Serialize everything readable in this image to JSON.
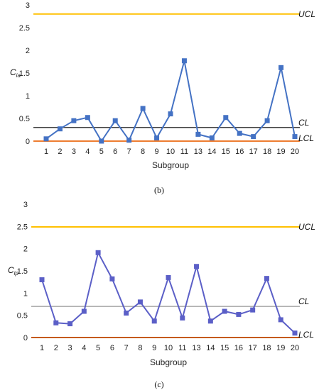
{
  "chart_data": [
    {
      "type": "line",
      "caption": "(b)",
      "xlabel": "Subgroup",
      "ylabel": "C",
      "ylabel_sub": "ia",
      "ylim": [
        0,
        3
      ],
      "yticks": [
        "0",
        "0.5",
        "1",
        "1.5",
        "2",
        "2.5",
        "3"
      ],
      "categories": [
        "1",
        "2",
        "3",
        "4",
        "5",
        "6",
        "7",
        "8",
        "9",
        "10",
        "11",
        "13",
        "14",
        "15",
        "16",
        "17",
        "18",
        "19",
        "20"
      ],
      "values": [
        0.05,
        0.27,
        0.45,
        0.52,
        0.0,
        0.45,
        0.02,
        0.72,
        0.07,
        0.6,
        1.77,
        0.15,
        0.07,
        0.52,
        0.17,
        0.1,
        0.45,
        1.62,
        0.1
      ],
      "series_color": "#4472C4",
      "limits": [
        {
          "label": "UCL",
          "value": 2.8,
          "color": "#FFC000"
        },
        {
          "label": "CL",
          "value": 0.3,
          "color": "#404040"
        },
        {
          "label": "LCL",
          "value": 0.0,
          "color": "#ED7D31"
        }
      ],
      "grid": false
    },
    {
      "type": "line",
      "caption": "(c)",
      "xlabel": "Subgroup",
      "ylabel": "C",
      "ylabel_sub": "ip",
      "ylim": [
        0,
        3
      ],
      "yticks": [
        "0",
        "0.5",
        "1",
        "1.5",
        "2",
        "2.5",
        "3"
      ],
      "categories": [
        "1",
        "2",
        "3",
        "4",
        "5",
        "6",
        "7",
        "8",
        "9",
        "10",
        "11",
        "13",
        "14",
        "15",
        "16",
        "17",
        "18",
        "19",
        "20"
      ],
      "values": [
        1.3,
        0.33,
        0.31,
        0.59,
        1.91,
        1.32,
        0.55,
        0.8,
        0.37,
        1.35,
        0.44,
        1.6,
        0.37,
        0.59,
        0.52,
        0.62,
        1.33,
        0.4,
        0.1
      ],
      "series_color": "#5B5FC7",
      "limits": [
        {
          "label": "UCL",
          "value": 2.49,
          "color": "#FFC000"
        },
        {
          "label": "CL",
          "value": 0.7,
          "color": "#A6A6A6"
        },
        {
          "label": "LCL",
          "value": 0.0,
          "color": "#C55A11"
        }
      ],
      "grid": false
    }
  ]
}
